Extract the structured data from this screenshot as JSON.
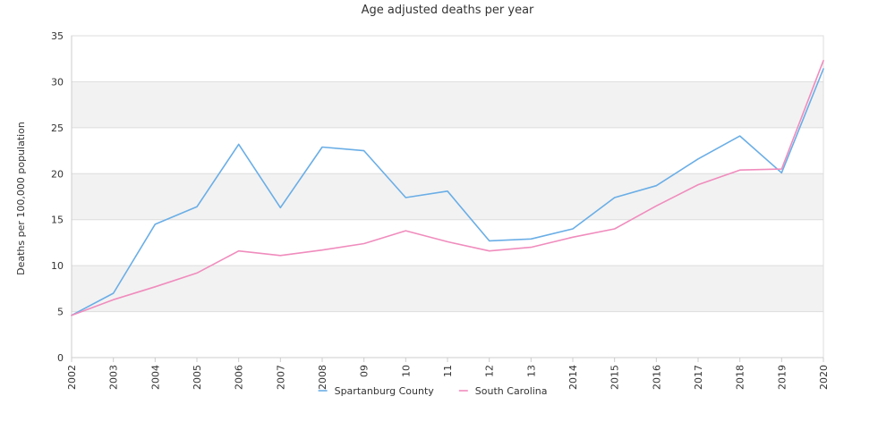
{
  "chart_data": {
    "type": "line",
    "title": "Age adjusted deaths per year",
    "xlabel": "",
    "ylabel": "Deaths per 100,000 population",
    "categories": [
      "2002",
      "2003",
      "2004",
      "2005",
      "2006",
      "2007",
      "2008",
      "09",
      "10",
      "11",
      "12",
      "13",
      "2014",
      "2015",
      "2016",
      "2017",
      "2018",
      "2019",
      "2020"
    ],
    "ylim": [
      0,
      35
    ],
    "yticks": [
      0,
      5,
      10,
      15,
      20,
      25,
      30,
      35
    ],
    "grid": true,
    "legend_position": "bottom",
    "series": [
      {
        "name": "Spartanburg County",
        "color": "#6aaee6",
        "values": [
          4.6,
          7.0,
          14.5,
          16.4,
          23.2,
          16.3,
          22.9,
          22.5,
          17.4,
          18.1,
          12.7,
          12.9,
          14.0,
          17.4,
          18.7,
          21.6,
          24.1,
          20.1,
          31.4
        ]
      },
      {
        "name": "South Carolina",
        "color": "#f08cbd",
        "values": [
          4.6,
          6.3,
          7.7,
          9.2,
          11.6,
          11.1,
          11.7,
          12.4,
          13.8,
          12.6,
          11.6,
          12.0,
          13.1,
          14.0,
          16.5,
          18.8,
          20.4,
          20.5,
          32.3
        ]
      }
    ]
  }
}
